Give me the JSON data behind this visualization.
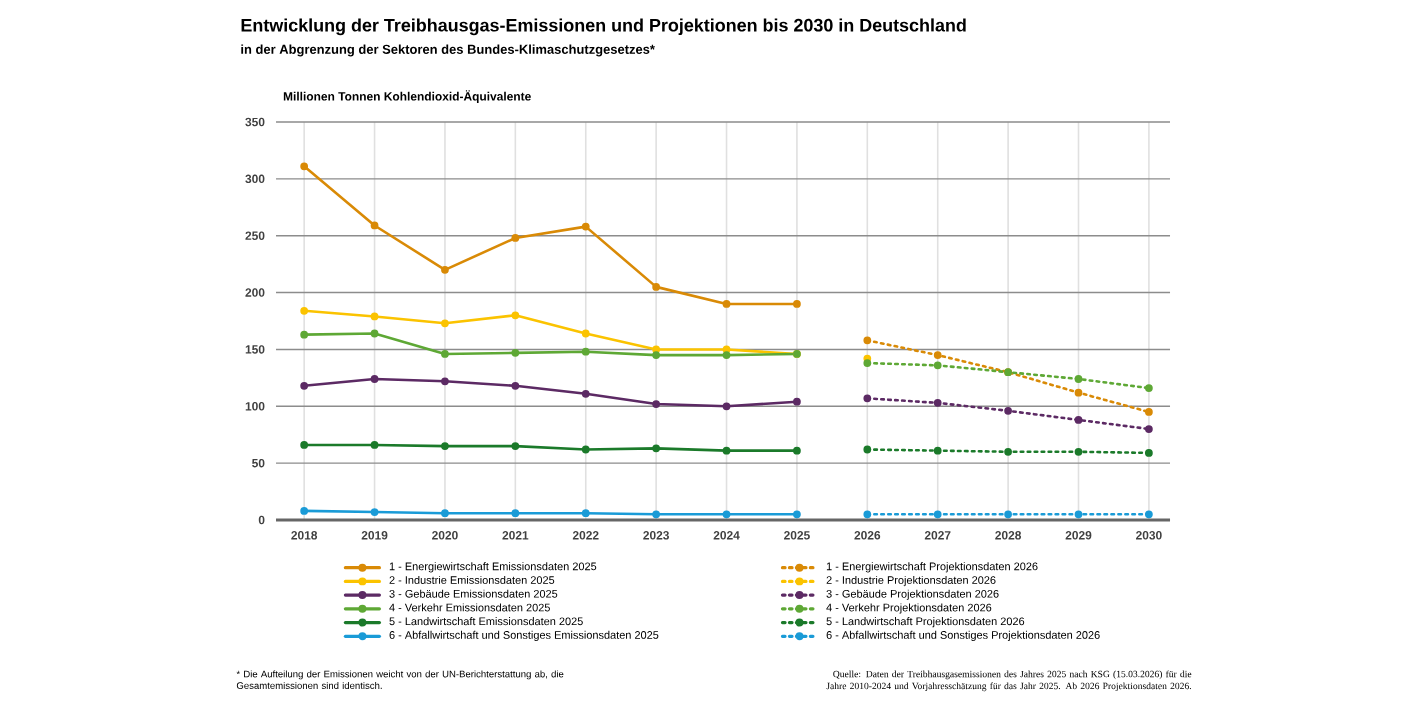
{
  "chart_data": {
    "type": "line",
    "title": "Entwicklung der Treibhausgas-Emissionen und Projektionen bis 2030 in Deutschland",
    "subtitle": "in der Abgrenzung der Sektoren des Bundes-Klimaschutzgesetzes*",
    "ylabel": "Millionen Tonnen Kohlendioxid-Äquivalente",
    "xlim": [
      2017.6,
      2030.3
    ],
    "ylim": [
      0,
      350
    ],
    "xticks": [
      2018,
      2019,
      2020,
      2021,
      2022,
      2023,
      2024,
      2025,
      2026,
      2027,
      2028,
      2029,
      2030
    ],
    "yticks": [
      0,
      50,
      100,
      150,
      200,
      250,
      300,
      350
    ],
    "grid": true,
    "legend": "bottom",
    "marker": "circle",
    "series": [
      {
        "name": "1 - Energiewirtschaft Emissionsdaten 2025",
        "color": "#d98a06",
        "line_style": "solid",
        "x": [
          2018,
          2019,
          2020,
          2021,
          2022,
          2023,
          2024,
          2025
        ],
        "values": [
          311,
          259,
          220,
          248,
          258,
          205,
          190,
          190
        ]
      },
      {
        "name": "1 - Energiewirtschaft Projektionsdaten 2026",
        "color": "#d98a06",
        "line_style": "dotted",
        "x": [
          2026,
          2027,
          2028,
          2029,
          2030
        ],
        "values": [
          158,
          145,
          130,
          112,
          95
        ]
      },
      {
        "name": "2 - Industrie Emissionsdaten 2025",
        "color": "#fbc300",
        "line_style": "solid",
        "x": [
          2018,
          2019,
          2020,
          2021,
          2022,
          2023,
          2024,
          2025
        ],
        "values": [
          184,
          179,
          173,
          180,
          164,
          150,
          150,
          146
        ]
      },
      {
        "name": "2 - Industrie Projektionsdaten 2026",
        "color": "#fbc300",
        "line_style": "dotted",
        "x": [
          2026
        ],
        "values": [
          142
        ]
      },
      {
        "name": "3 - Gebäude Emissionsdaten 2025",
        "color": "#5c2a64",
        "line_style": "solid",
        "x": [
          2018,
          2019,
          2020,
          2021,
          2022,
          2023,
          2024,
          2025
        ],
        "values": [
          118,
          124,
          122,
          118,
          111,
          102,
          100,
          104
        ]
      },
      {
        "name": "3 - Gebäude Projektionsdaten 2026",
        "color": "#5c2a64",
        "line_style": "dotted",
        "x": [
          2026,
          2027,
          2028,
          2029,
          2030
        ],
        "values": [
          107,
          103,
          96,
          88,
          80
        ]
      },
      {
        "name": "4 - Verkehr Emissionsdaten 2025",
        "color": "#5ea835",
        "line_style": "solid",
        "x": [
          2018,
          2019,
          2020,
          2021,
          2022,
          2023,
          2024,
          2025
        ],
        "values": [
          163,
          164,
          146,
          147,
          148,
          145,
          145,
          146
        ]
      },
      {
        "name": "4 - Verkehr Projektionsdaten 2026",
        "color": "#5ea835",
        "line_style": "dotted",
        "x": [
          2026,
          2027,
          2028,
          2029,
          2030
        ],
        "values": [
          138,
          136,
          130,
          124,
          116
        ]
      },
      {
        "name": "5 - Landwirtschaft Emissionsdaten 2025",
        "color": "#1b7a2a",
        "line_style": "solid",
        "x": [
          2018,
          2019,
          2020,
          2021,
          2022,
          2023,
          2024,
          2025
        ],
        "values": [
          66,
          66,
          65,
          65,
          62,
          63,
          61,
          61
        ]
      },
      {
        "name": "5 - Landwirtschaft Projektionsdaten 2026",
        "color": "#1b7a2a",
        "line_style": "dotted",
        "x": [
          2026,
          2027,
          2028,
          2029,
          2030
        ],
        "values": [
          62,
          61,
          60,
          60,
          59
        ]
      },
      {
        "name": "6 - Abfallwirtschaft und Sonstiges Emissionsdaten 2025",
        "color": "#1a9bd7",
        "line_style": "solid",
        "x": [
          2018,
          2019,
          2020,
          2021,
          2022,
          2023,
          2024,
          2025
        ],
        "values": [
          8,
          7,
          6,
          6,
          6,
          5,
          5,
          5
        ]
      },
      {
        "name": "6 - Abfallwirtschaft und Sonstiges Projektionsdaten 2026",
        "color": "#1a9bd7",
        "line_style": "dotted",
        "x": [
          2026,
          2027,
          2028,
          2029,
          2030
        ],
        "values": [
          5,
          5,
          5,
          5,
          5
        ]
      }
    ],
    "annotations": [
      "* Die Aufteilung der Emissionen weicht von der UN-Berichterstattung ab, die Gesamtemissionen sind identisch.",
      "Quelle: Daten der Treibhausgasemissionen des Jahres 2025 nach KSG (15.03.2026) für die Jahre 2010-2024 und Vorjahresschätzung für das Jahr 2025. Ab 2026 Projektionsdaten 2026."
    ]
  }
}
